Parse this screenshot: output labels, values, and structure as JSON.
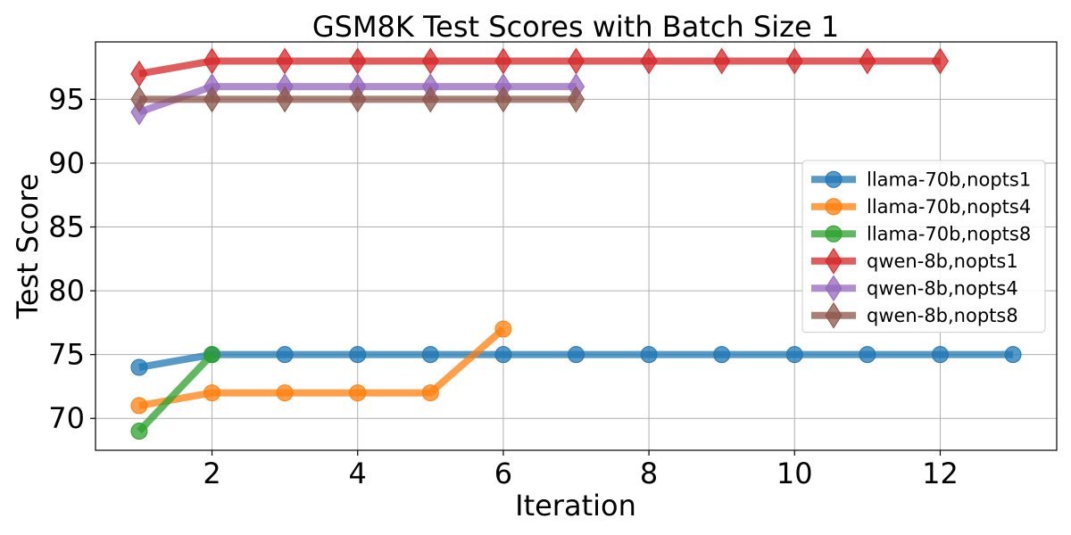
{
  "chart_data": {
    "type": "line",
    "title": "GSM8K Test Scores with Batch Size 1",
    "xlabel": "Iteration",
    "ylabel": "Test Score",
    "xlim": [
      0.4,
      13.6
    ],
    "ylim": [
      67.5,
      99.5
    ],
    "x_ticks": [
      2,
      4,
      6,
      8,
      10,
      12
    ],
    "y_ticks": [
      70,
      75,
      80,
      85,
      90,
      95
    ],
    "grid": true,
    "legend_position": "center-right",
    "series": [
      {
        "name": "llama-70b,nopts1",
        "color": "#1f77b4",
        "marker": "circle",
        "x": [
          1,
          2,
          3,
          4,
          5,
          6,
          7,
          8,
          9,
          10,
          11,
          12,
          13
        ],
        "y": [
          74,
          75,
          75,
          75,
          75,
          75,
          75,
          75,
          75,
          75,
          75,
          75,
          75
        ]
      },
      {
        "name": "llama-70b,nopts4",
        "color": "#ff7f0e",
        "marker": "circle",
        "x": [
          1,
          2,
          3,
          4,
          5,
          6
        ],
        "y": [
          71,
          72,
          72,
          72,
          72,
          77
        ]
      },
      {
        "name": "llama-70b,nopts8",
        "color": "#2ca02c",
        "marker": "circle",
        "x": [
          1,
          2
        ],
        "y": [
          69,
          75
        ]
      },
      {
        "name": "qwen-8b,nopts1",
        "color": "#d62728",
        "marker": "diamond",
        "x": [
          1,
          2,
          3,
          4,
          5,
          6,
          7,
          8,
          9,
          10,
          11,
          12
        ],
        "y": [
          97,
          98,
          98,
          98,
          98,
          98,
          98,
          98,
          98,
          98,
          98,
          98
        ]
      },
      {
        "name": "qwen-8b,nopts4",
        "color": "#9467bd",
        "marker": "diamond",
        "x": [
          1,
          2,
          3,
          4,
          5,
          6,
          7
        ],
        "y": [
          94,
          96,
          96,
          96,
          96,
          96,
          96
        ]
      },
      {
        "name": "qwen-8b,nopts8",
        "color": "#8c564b",
        "marker": "diamond",
        "x": [
          1,
          2,
          3,
          4,
          5,
          6,
          7
        ],
        "y": [
          95,
          95,
          95,
          95,
          95,
          95,
          95
        ]
      }
    ]
  }
}
